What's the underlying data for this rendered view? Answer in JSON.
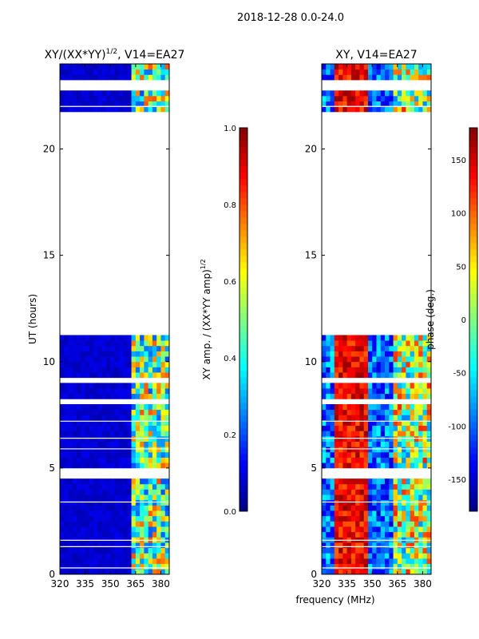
{
  "suptitle": "2018-12-28 0.0-24.0",
  "chart_data": [
    {
      "type": "heatmap",
      "title": "XY/(XX*YY)",
      "title_sup": "1/2",
      "title_suffix": ", V14=EA27",
      "xlabel": "",
      "ylabel": "UT (hours)",
      "xlim": [
        320,
        385
      ],
      "ylim": [
        0,
        24
      ],
      "xticks": [
        320,
        335,
        350,
        365,
        380
      ],
      "yticks": [
        0,
        5,
        10,
        15,
        20
      ],
      "colorbar": {
        "label": "XY amp. / (XX*YY amp)",
        "label_sup": "1/2",
        "range": [
          0.0,
          1.0
        ],
        "ticks": [
          "0.0",
          "0.2",
          "0.4",
          "0.6",
          "0.8",
          "1.0"
        ],
        "colormap": "jet"
      },
      "blank_hour_ranges": [
        [
          11.2,
          21.7
        ],
        [
          22.7,
          23.3
        ],
        [
          9.1,
          9.3
        ],
        [
          8.0,
          8.2
        ],
        [
          4.5,
          4.95
        ]
      ],
      "band_description": "Low amplitude (~0.05) below 363 MHz; patchy high amplitude (0.4-0.8) between 363 and 385 MHz"
    },
    {
      "type": "heatmap",
      "title": "XY, V14=EA27",
      "xlabel": "frequency (MHz)",
      "ylabel": "",
      "xlim": [
        320,
        385
      ],
      "ylim": [
        0,
        24
      ],
      "xticks": [
        320,
        335,
        350,
        365,
        380
      ],
      "yticks": [
        0,
        5,
        10,
        15,
        20
      ],
      "colorbar": {
        "label": "phase (deg.)",
        "range": [
          -180,
          180
        ],
        "ticks": [
          "-150",
          "-100",
          "-50",
          "0",
          "50",
          "100",
          "150"
        ],
        "colormap": "jet"
      },
      "blank_hour_ranges": [
        [
          11.2,
          21.7
        ],
        [
          22.7,
          23.3
        ],
        [
          9.1,
          9.3
        ],
        [
          8.0,
          8.2
        ],
        [
          4.5,
          4.95
        ]
      ],
      "band_description": "Phase near +150 deg around 330-345 MHz, mixed phases elsewhere"
    }
  ],
  "colors": {
    "jet_low": "#00007f",
    "jet_mid": "#7dff7a",
    "jet_high": "#7f0000"
  }
}
